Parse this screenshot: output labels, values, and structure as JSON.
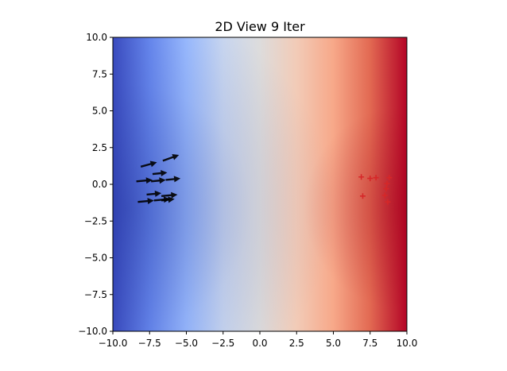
{
  "chart_data": {
    "type": "heatmap",
    "title": "2D View 9 Iter",
    "xlabel": "",
    "ylabel": "",
    "xlim": [
      -10,
      10
    ],
    "ylim": [
      -10,
      10
    ],
    "grid": false,
    "x_ticks": [
      "−10.0",
      "−7.5",
      "−5.0",
      "−2.5",
      "0.0",
      "2.5",
      "5.0",
      "7.5",
      "10.0"
    ],
    "y_ticks": [
      "10.0",
      "7.5",
      "5.0",
      "2.5",
      "0.0",
      "−2.5",
      "−5.0",
      "−7.5",
      "−10.0"
    ],
    "colormap": "coolwarm",
    "colormap_stops": [
      "#3b4cc0",
      "#6788ee",
      "#9abbff",
      "#c9d7f0",
      "#dddcdc",
      "#f2cbb7",
      "#f7a889",
      "#e26952",
      "#b40426"
    ],
    "particles": {
      "color": "#000000",
      "points": [
        {
          "x": -8.1,
          "y": 1.2,
          "dx": 1.1,
          "dy": 0.3
        },
        {
          "x": -6.6,
          "y": 1.6,
          "dx": 1.1,
          "dy": 0.4
        },
        {
          "x": -7.3,
          "y": 0.7,
          "dx": 1.0,
          "dy": 0.1
        },
        {
          "x": -8.4,
          "y": 0.2,
          "dx": 1.1,
          "dy": 0.1
        },
        {
          "x": -7.4,
          "y": 0.2,
          "dx": 1.0,
          "dy": 0.1
        },
        {
          "x": -6.4,
          "y": 0.3,
          "dx": 1.0,
          "dy": 0.1
        },
        {
          "x": -7.7,
          "y": -0.7,
          "dx": 1.0,
          "dy": 0.1
        },
        {
          "x": -6.7,
          "y": -0.8,
          "dx": 1.1,
          "dy": 0.1
        },
        {
          "x": -8.3,
          "y": -1.2,
          "dx": 1.1,
          "dy": 0.1
        },
        {
          "x": -7.2,
          "y": -1.1,
          "dx": 1.1,
          "dy": 0.1
        },
        {
          "x": -6.7,
          "y": -1.1,
          "dx": 0.9,
          "dy": 0.1
        }
      ]
    },
    "targets": {
      "color": "#d62728",
      "marker": "+",
      "points": [
        {
          "x": 6.9,
          "y": 0.5
        },
        {
          "x": 7.5,
          "y": 0.4
        },
        {
          "x": 7.9,
          "y": 0.45
        },
        {
          "x": 8.8,
          "y": 0.45
        },
        {
          "x": 8.65,
          "y": 0.05
        },
        {
          "x": 8.6,
          "y": -0.3
        },
        {
          "x": 7.0,
          "y": -0.8
        },
        {
          "x": 8.5,
          "y": -0.75
        },
        {
          "x": 8.7,
          "y": -1.2
        }
      ]
    }
  }
}
